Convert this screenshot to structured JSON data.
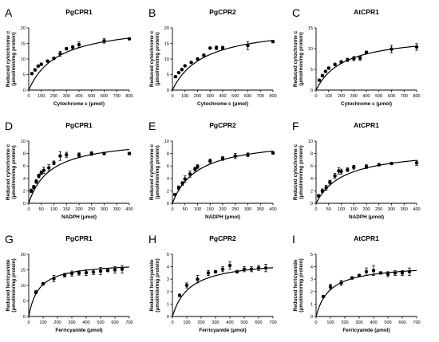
{
  "chart_data": [
    {
      "type": "scatter",
      "panel_letter": "A",
      "title": "PgCPR1",
      "xlabel": "Cytochrome c (μmol)",
      "ylabel": [
        "Reduced cytochrome c",
        "(μmol/min/mg protein)"
      ],
      "xlim": [
        0,
        800
      ],
      "ylim": [
        0,
        20
      ],
      "xticks": [
        0,
        100,
        200,
        300,
        400,
        500,
        600,
        700,
        800
      ],
      "yticks": [
        0,
        5,
        10,
        15,
        20
      ],
      "fit": {
        "vmax": 21.5,
        "km": 230
      },
      "points": [
        {
          "x": 25,
          "y": 5.3,
          "err": 0.3
        },
        {
          "x": 50,
          "y": 6.5,
          "err": 0.4
        },
        {
          "x": 75,
          "y": 7.7,
          "err": 0.3
        },
        {
          "x": 100,
          "y": 8.3,
          "err": 0.4
        },
        {
          "x": 150,
          "y": 9.3,
          "err": 0.3
        },
        {
          "x": 200,
          "y": 10.2,
          "err": 0.4
        },
        {
          "x": 250,
          "y": 11.7,
          "err": 0.8
        },
        {
          "x": 300,
          "y": 13.3,
          "err": 0.4
        },
        {
          "x": 350,
          "y": 13.8,
          "err": 0.5
        },
        {
          "x": 400,
          "y": 14.6,
          "err": 0.9
        },
        {
          "x": 600,
          "y": 15.8,
          "err": 0.7
        },
        {
          "x": 800,
          "y": 16.5,
          "err": 0.3
        }
      ]
    },
    {
      "type": "scatter",
      "panel_letter": "B",
      "title": "PgCPR2",
      "xlabel": "Cytochrome c (μmol)",
      "ylabel": [
        "Reduced cytochrome c",
        "(μmol/min/mg protein)"
      ],
      "xlim": [
        0,
        800
      ],
      "ylim": [
        0,
        20
      ],
      "xticks": [
        0,
        100,
        200,
        300,
        400,
        500,
        600,
        700,
        800
      ],
      "yticks": [
        0,
        5,
        10,
        15,
        20
      ],
      "fit": {
        "vmax": 21,
        "km": 250
      },
      "points": [
        {
          "x": 25,
          "y": 4.3,
          "err": 0.3
        },
        {
          "x": 50,
          "y": 5.6,
          "err": 0.3
        },
        {
          "x": 75,
          "y": 6.6,
          "err": 0.3
        },
        {
          "x": 100,
          "y": 7.8,
          "err": 0.3
        },
        {
          "x": 150,
          "y": 8.9,
          "err": 0.3
        },
        {
          "x": 200,
          "y": 10.0,
          "err": 0.3
        },
        {
          "x": 250,
          "y": 11.2,
          "err": 0.4
        },
        {
          "x": 300,
          "y": 13.5,
          "err": 0.3
        },
        {
          "x": 350,
          "y": 13.6,
          "err": 0.6
        },
        {
          "x": 400,
          "y": 13.6,
          "err": 0.5
        },
        {
          "x": 600,
          "y": 14.3,
          "err": 1.3
        },
        {
          "x": 800,
          "y": 15.6,
          "err": 0.3
        }
      ]
    },
    {
      "type": "scatter",
      "panel_letter": "C",
      "title": "AtCPR1",
      "xlabel": "Cytochrome c (μmol)",
      "ylabel": [
        "Reduced cytochrome c",
        "(μmol/min/mg protein)"
      ],
      "xlim": [
        0,
        800
      ],
      "ylim": [
        0,
        15
      ],
      "xticks": [
        0,
        100,
        200,
        300,
        400,
        500,
        600,
        700,
        800
      ],
      "yticks": [
        0,
        5,
        10,
        15
      ],
      "fit": {
        "vmax": 13.5,
        "km": 220
      },
      "points": [
        {
          "x": 25,
          "y": 2.4,
          "err": 0.2
        },
        {
          "x": 50,
          "y": 3.5,
          "err": 0.3
        },
        {
          "x": 75,
          "y": 4.5,
          "err": 0.2
        },
        {
          "x": 100,
          "y": 5.3,
          "err": 0.3
        },
        {
          "x": 150,
          "y": 6.2,
          "err": 0.3
        },
        {
          "x": 200,
          "y": 6.8,
          "err": 0.3
        },
        {
          "x": 250,
          "y": 7.3,
          "err": 0.4
        },
        {
          "x": 300,
          "y": 7.6,
          "err": 0.5
        },
        {
          "x": 350,
          "y": 7.7,
          "err": 0.5
        },
        {
          "x": 400,
          "y": 9.1,
          "err": 0.3
        },
        {
          "x": 600,
          "y": 9.9,
          "err": 0.9
        },
        {
          "x": 800,
          "y": 10.4,
          "err": 0.8
        }
      ]
    },
    {
      "type": "scatter",
      "panel_letter": "D",
      "title": "PgCPR1",
      "xlabel": "NADPH (μmol)",
      "ylabel": [
        "Reduced cytochrome c",
        "(μmol/min/mg protein)"
      ],
      "xlim": [
        0,
        400
      ],
      "ylim": [
        0,
        10
      ],
      "xticks": [
        0,
        50,
        100,
        150,
        200,
        250,
        300,
        350,
        400
      ],
      "yticks": [
        0,
        2,
        4,
        6,
        8,
        10
      ],
      "fit": {
        "vmax": 10.5,
        "km": 85
      },
      "points": [
        {
          "x": 10,
          "y": 2.0,
          "err": 0.3
        },
        {
          "x": 20,
          "y": 2.6,
          "err": 0.3
        },
        {
          "x": 30,
          "y": 3.5,
          "err": 0.3
        },
        {
          "x": 40,
          "y": 4.4,
          "err": 0.3
        },
        {
          "x": 50,
          "y": 4.9,
          "err": 0.3
        },
        {
          "x": 60,
          "y": 5.3,
          "err": 0.5
        },
        {
          "x": 80,
          "y": 5.7,
          "err": 0.5
        },
        {
          "x": 100,
          "y": 6.5,
          "err": 0.3
        },
        {
          "x": 125,
          "y": 7.6,
          "err": 0.7
        },
        {
          "x": 150,
          "y": 7.8,
          "err": 0.4
        },
        {
          "x": 200,
          "y": 7.8,
          "err": 0.3
        },
        {
          "x": 250,
          "y": 8.0,
          "err": 0.3
        },
        {
          "x": 300,
          "y": 8.0,
          "err": 0.2
        },
        {
          "x": 400,
          "y": 8.0,
          "err": 0.2
        }
      ]
    },
    {
      "type": "scatter",
      "panel_letter": "E",
      "title": "PgCPR2",
      "xlabel": "NADPH (μmol)",
      "ylabel": [
        "Reduced cytochrome c",
        "(μmol/min/mg protein)"
      ],
      "xlim": [
        0,
        400
      ],
      "ylim": [
        0,
        10
      ],
      "xticks": [
        0,
        50,
        100,
        150,
        200,
        250,
        300,
        350,
        400
      ],
      "yticks": [
        0,
        2,
        4,
        6,
        8,
        10
      ],
      "fit": {
        "vmax": 10.5,
        "km": 100
      },
      "points": [
        {
          "x": 10,
          "y": 1.4,
          "err": 0.2
        },
        {
          "x": 25,
          "y": 2.5,
          "err": 0.3
        },
        {
          "x": 40,
          "y": 3.2,
          "err": 0.3
        },
        {
          "x": 50,
          "y": 3.9,
          "err": 0.5
        },
        {
          "x": 70,
          "y": 4.7,
          "err": 0.5
        },
        {
          "x": 90,
          "y": 5.5,
          "err": 0.3
        },
        {
          "x": 100,
          "y": 5.9,
          "err": 0.3
        },
        {
          "x": 150,
          "y": 6.8,
          "err": 0.3
        },
        {
          "x": 200,
          "y": 7.2,
          "err": 0.3
        },
        {
          "x": 250,
          "y": 7.6,
          "err": 0.4
        },
        {
          "x": 300,
          "y": 7.8,
          "err": 0.3
        },
        {
          "x": 400,
          "y": 8.1,
          "err": 0.2
        }
      ]
    },
    {
      "type": "scatter",
      "panel_letter": "F",
      "title": "AtCPR1",
      "xlabel": "NADPH (μmol)",
      "ylabel": [
        "Reduced cytochrome c",
        "(μmol/min/mg protein)"
      ],
      "xlim": [
        0,
        400
      ],
      "ylim": [
        0,
        10
      ],
      "xticks": [
        0,
        50,
        100,
        150,
        200,
        250,
        300,
        350,
        400
      ],
      "yticks": [
        0,
        2,
        4,
        6,
        8,
        10
      ],
      "fit": {
        "vmax": 8.8,
        "km": 110
      },
      "points": [
        {
          "x": 10,
          "y": 1.2,
          "err": 0.2
        },
        {
          "x": 25,
          "y": 2.0,
          "err": 0.3
        },
        {
          "x": 40,
          "y": 2.5,
          "err": 0.4
        },
        {
          "x": 55,
          "y": 3.4,
          "err": 0.3
        },
        {
          "x": 75,
          "y": 4.4,
          "err": 0.4
        },
        {
          "x": 90,
          "y": 5.2,
          "err": 0.5
        },
        {
          "x": 100,
          "y": 5.1,
          "err": 0.4
        },
        {
          "x": 125,
          "y": 5.4,
          "err": 0.3
        },
        {
          "x": 150,
          "y": 5.8,
          "err": 0.3
        },
        {
          "x": 200,
          "y": 5.9,
          "err": 0.3
        },
        {
          "x": 250,
          "y": 6.2,
          "err": 0.2
        },
        {
          "x": 300,
          "y": 6.4,
          "err": 0.2
        },
        {
          "x": 400,
          "y": 6.5,
          "err": 0.4
        }
      ]
    },
    {
      "type": "scatter",
      "panel_letter": "G",
      "title": "PgCPR1",
      "xlabel": "Ferricyanide (μmol)",
      "ylabel": [
        "Reduced ferricyanide",
        "(μmol/min/mg protein)"
      ],
      "xlim": [
        0,
        700
      ],
      "ylim": [
        0,
        20
      ],
      "xticks": [
        0,
        100,
        200,
        300,
        400,
        500,
        600,
        700
      ],
      "yticks": [
        0,
        5,
        10,
        15,
        20
      ],
      "fit": {
        "vmax": 17.5,
        "km": 70
      },
      "points": [
        {
          "x": 50,
          "y": 7.8,
          "err": 0.5
        },
        {
          "x": 100,
          "y": 10.5,
          "err": 0.4
        },
        {
          "x": 175,
          "y": 12.2,
          "err": 1.0
        },
        {
          "x": 250,
          "y": 13.3,
          "err": 0.6
        },
        {
          "x": 300,
          "y": 13.8,
          "err": 0.8
        },
        {
          "x": 350,
          "y": 14.0,
          "err": 0.7
        },
        {
          "x": 400,
          "y": 14.1,
          "err": 0.9
        },
        {
          "x": 450,
          "y": 14.3,
          "err": 0.8
        },
        {
          "x": 500,
          "y": 14.6,
          "err": 1.2
        },
        {
          "x": 550,
          "y": 14.8,
          "err": 0.4
        },
        {
          "x": 600,
          "y": 15.0,
          "err": 1.0
        },
        {
          "x": 650,
          "y": 15.2,
          "err": 1.2
        }
      ]
    },
    {
      "type": "scatter",
      "panel_letter": "H",
      "title": "PgCPR2",
      "xlabel": "Ferricyanide (μmol)",
      "ylabel": [
        "Reduced ferricyanide",
        "(μmol/min/mg protein)"
      ],
      "xlim": [
        0,
        700
      ],
      "ylim": [
        0,
        5
      ],
      "xticks": [
        0,
        100,
        200,
        300,
        400,
        500,
        600,
        700
      ],
      "yticks": [
        0,
        1,
        2,
        3,
        4,
        5
      ],
      "fit": {
        "vmax": 4.6,
        "km": 120
      },
      "points": [
        {
          "x": 50,
          "y": 1.7,
          "err": 0.1
        },
        {
          "x": 100,
          "y": 2.5,
          "err": 0.2
        },
        {
          "x": 175,
          "y": 3.0,
          "err": 0.3
        },
        {
          "x": 250,
          "y": 3.5,
          "err": 0.2
        },
        {
          "x": 300,
          "y": 3.6,
          "err": 0.1
        },
        {
          "x": 350,
          "y": 3.8,
          "err": 0.2
        },
        {
          "x": 400,
          "y": 4.1,
          "err": 0.3
        },
        {
          "x": 450,
          "y": 3.6,
          "err": 0.1
        },
        {
          "x": 500,
          "y": 3.8,
          "err": 0.2
        },
        {
          "x": 550,
          "y": 3.8,
          "err": 0.2
        },
        {
          "x": 600,
          "y": 3.9,
          "err": 0.2
        },
        {
          "x": 650,
          "y": 3.9,
          "err": 0.3
        }
      ]
    },
    {
      "type": "scatter",
      "panel_letter": "I",
      "title": "AtCPR1",
      "xlabel": "Ferricyanide (μmol)",
      "ylabel": [
        "Reduced ferricyanide",
        "(μmol/min/mg protein)"
      ],
      "xlim": [
        0,
        700
      ],
      "ylim": [
        0,
        5
      ],
      "xticks": [
        0,
        100,
        200,
        300,
        400,
        500,
        600,
        700
      ],
      "yticks": [
        0,
        1,
        2,
        3,
        4,
        5
      ],
      "fit": {
        "vmax": 4.2,
        "km": 95
      },
      "points": [
        {
          "x": 50,
          "y": 1.6,
          "err": 0.1
        },
        {
          "x": 100,
          "y": 2.4,
          "err": 0.2
        },
        {
          "x": 175,
          "y": 2.7,
          "err": 0.2
        },
        {
          "x": 250,
          "y": 3.1,
          "err": 0.1
        },
        {
          "x": 300,
          "y": 3.3,
          "err": 0.1
        },
        {
          "x": 350,
          "y": 3.6,
          "err": 0.3
        },
        {
          "x": 400,
          "y": 3.7,
          "err": 0.4
        },
        {
          "x": 450,
          "y": 3.5,
          "err": 0.1
        },
        {
          "x": 500,
          "y": 3.4,
          "err": 0.2
        },
        {
          "x": 550,
          "y": 3.5,
          "err": 0.2
        },
        {
          "x": 600,
          "y": 3.5,
          "err": 0.2
        },
        {
          "x": 650,
          "y": 3.6,
          "err": 0.3
        }
      ]
    }
  ]
}
